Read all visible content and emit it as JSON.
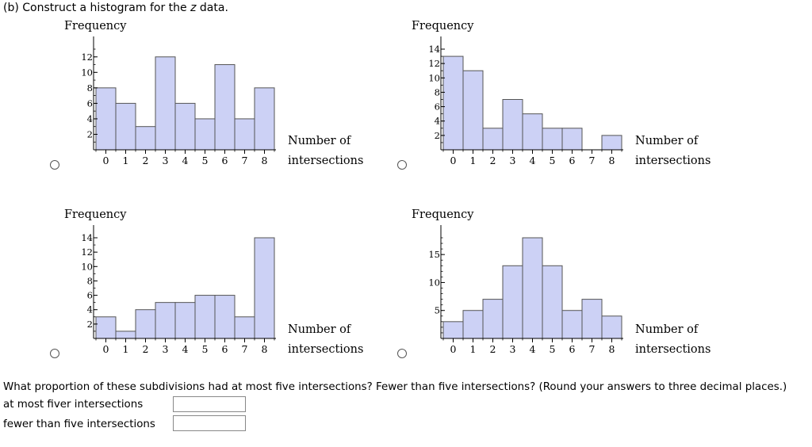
{
  "part_heading_prefix": "(b) Construct a histogram for the ",
  "part_heading_var": "z",
  "part_heading_suffix": " data.",
  "chart_data": [
    {
      "type": "bar",
      "ylabel": "Frequency",
      "xlabel": "Number of intersections",
      "xlabel_lines": [
        "Number of",
        "intersections"
      ],
      "categories": [
        "0",
        "1",
        "2",
        "3",
        "4",
        "5",
        "6",
        "7",
        "8"
      ],
      "values": [
        8,
        6,
        3,
        12,
        6,
        4,
        11,
        4,
        8
      ],
      "yticks": [
        2,
        4,
        6,
        8,
        10,
        12
      ],
      "yticklabels": [
        "2",
        "4",
        "6",
        "8",
        "10",
        "12"
      ],
      "ylim": [
        0,
        13
      ],
      "yminor": 1,
      "bar_color": "#ccd1f5"
    },
    {
      "type": "bar",
      "ylabel": "Frequency",
      "xlabel": "Number of intersections",
      "xlabel_lines": [
        "Number of",
        "intersections"
      ],
      "categories": [
        "0",
        "1",
        "2",
        "3",
        "4",
        "5",
        "6",
        "7",
        "8"
      ],
      "values": [
        13,
        11,
        3,
        7,
        5,
        3,
        3,
        0,
        2
      ],
      "yticks": [
        2,
        4,
        6,
        8,
        10,
        12,
        14
      ],
      "yticklabels": [
        "2",
        "4",
        "6",
        "8",
        "10",
        "12",
        "14"
      ],
      "ylim": [
        0,
        14
      ],
      "yminor": 1,
      "bar_color": "#ccd1f5"
    },
    {
      "type": "bar",
      "ylabel": "Frequency",
      "xlabel": "Number of intersections",
      "xlabel_lines": [
        "Number of",
        "intersections"
      ],
      "categories": [
        "0",
        "1",
        "2",
        "3",
        "4",
        "5",
        "6",
        "7",
        "8"
      ],
      "values": [
        3,
        1,
        4,
        5,
        5,
        6,
        6,
        3,
        14
      ],
      "yticks": [
        2,
        4,
        6,
        8,
        10,
        12,
        14
      ],
      "yticklabels": [
        "2",
        "4",
        "6",
        "8",
        "10",
        "12",
        "14"
      ],
      "ylim": [
        0,
        14
      ],
      "yminor": 1,
      "bar_color": "#ccd1f5"
    },
    {
      "type": "bar",
      "ylabel": "Frequency",
      "xlabel": "Number of intersections",
      "xlabel_lines": [
        "Number of",
        "intersections"
      ],
      "categories": [
        "0",
        "1",
        "2",
        "3",
        "4",
        "5",
        "6",
        "7",
        "8"
      ],
      "values": [
        3,
        5,
        7,
        13,
        18,
        13,
        5,
        7,
        4
      ],
      "yticks": [
        5,
        10,
        15
      ],
      "yticklabels": [
        "5",
        "10",
        "15"
      ],
      "ylim": [
        0,
        18
      ],
      "yminor": 1,
      "bar_color": "#ccd1f5"
    }
  ],
  "question": "What proportion of these subdivisions had at most five intersections? Fewer than five intersections? (Round your answers to three decimal places.)",
  "answers": [
    {
      "label": "at most fiver intersections",
      "value": ""
    },
    {
      "label": "fewer than five intersections",
      "value": ""
    }
  ]
}
